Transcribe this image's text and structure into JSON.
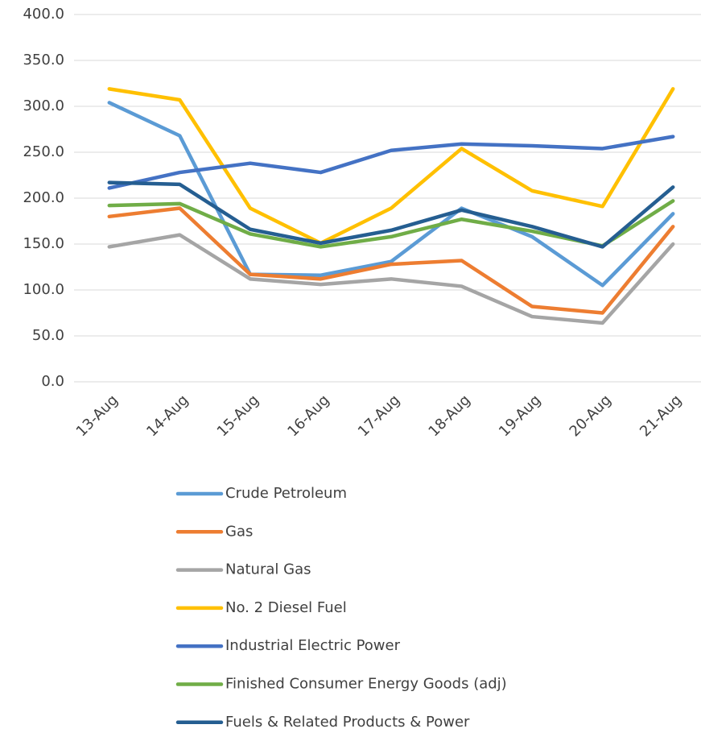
{
  "chart_data": {
    "type": "line",
    "categories": [
      "13-Aug",
      "14-Aug",
      "15-Aug",
      "16-Aug",
      "17-Aug",
      "18-Aug",
      "19-Aug",
      "20-Aug",
      "21-Aug"
    ],
    "series": [
      {
        "name": "Crude Petroleum",
        "color": "#5b9bd5",
        "values": [
          304,
          268,
          117,
          116,
          131,
          189,
          158,
          105,
          183
        ]
      },
      {
        "name": "Gas",
        "color": "#ed7d31",
        "values": [
          180,
          189,
          117,
          112,
          128,
          132,
          82,
          75,
          169
        ]
      },
      {
        "name": "Natural Gas",
        "color": "#a5a5a5",
        "values": [
          147,
          160,
          112,
          106,
          112,
          104,
          71,
          64,
          150
        ]
      },
      {
        "name": "No. 2 Diesel Fuel",
        "color": "#ffc000",
        "values": [
          319,
          307,
          189,
          151,
          189,
          254,
          208,
          191,
          319
        ]
      },
      {
        "name": "Industrial Electric Power",
        "color": "#4472c4",
        "values": [
          211,
          228,
          238,
          228,
          252,
          259,
          257,
          254,
          267
        ]
      },
      {
        "name": "Finished Consumer Energy Goods (adj)",
        "color": "#70ad47",
        "values": [
          192,
          194,
          161,
          147,
          158,
          177,
          164,
          148,
          197
        ]
      },
      {
        "name": "Fuels & Related Products & Power",
        "color": "#255e91",
        "values": [
          217,
          215,
          166,
          151,
          165,
          187,
          169,
          147,
          212
        ]
      }
    ],
    "ylim": [
      0,
      400
    ],
    "yticks": [
      {
        "value": 0,
        "label": "0.0"
      },
      {
        "value": 50,
        "label": "50.0"
      },
      {
        "value": 100,
        "label": "100.0"
      },
      {
        "value": 150,
        "label": "150.0"
      },
      {
        "value": 200,
        "label": "200.0"
      },
      {
        "value": 250,
        "label": "250.0"
      },
      {
        "value": 300,
        "label": "300.0"
      },
      {
        "value": 350,
        "label": "350.0"
      },
      {
        "value": 400,
        "label": "400.0"
      }
    ],
    "grid": true,
    "legend": "bottom"
  }
}
